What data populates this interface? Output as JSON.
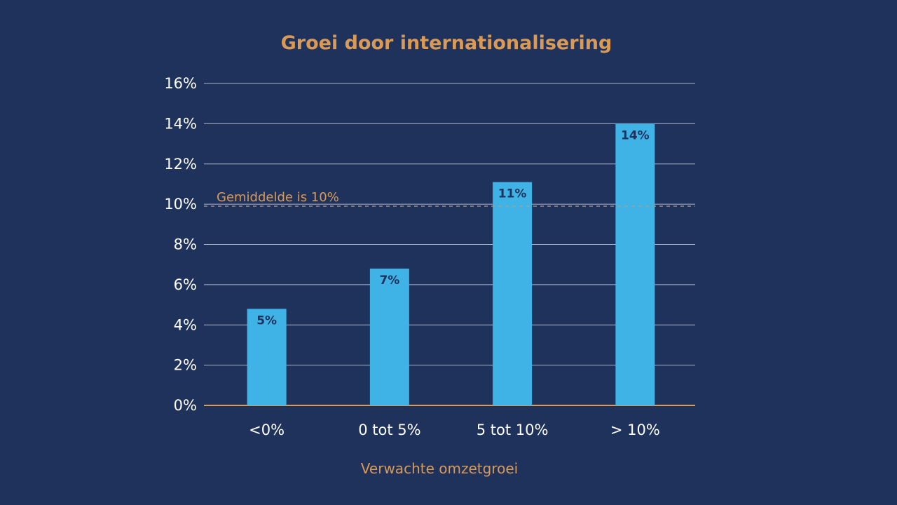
{
  "chart_data": {
    "type": "bar",
    "title": "Groei door internationalisering",
    "xlabel": "Verwachte omzetgroei",
    "ylabel": "",
    "categories": [
      "<0%",
      "0 tot 5%",
      "5 tot 10%",
      "> 10%"
    ],
    "values": [
      4.8,
      6.8,
      11.1,
      14.0
    ],
    "data_labels": [
      "5%",
      "7%",
      "11%",
      "14%"
    ],
    "ylim": [
      0,
      16
    ],
    "yticks": [
      0,
      2,
      4,
      6,
      8,
      10,
      12,
      14,
      16
    ],
    "ytick_labels": [
      "0%",
      "2%",
      "4%",
      "6%",
      "8%",
      "10%",
      "12%",
      "14%",
      "16%"
    ],
    "grid": true,
    "legend": "none",
    "reference_line": {
      "value": 9.9,
      "label": "Gemiddelde is 10%"
    },
    "colors": {
      "background": "#1f325c",
      "bar": "#3fb2e6",
      "accent": "#d99a57",
      "gridline": "#a9b4c8",
      "text": "#ffffff"
    }
  }
}
